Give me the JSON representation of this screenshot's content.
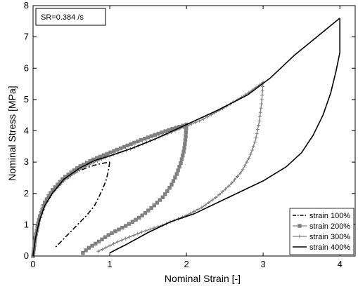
{
  "chart_data": {
    "type": "line",
    "xlabel": "Nominal Strain [-]",
    "ylabel": "Nominal Stress [MPa]",
    "xlim": [
      0,
      4.2
    ],
    "ylim": [
      0,
      8
    ],
    "xticks": [
      0,
      1,
      2,
      3,
      4
    ],
    "yticks": [
      0,
      1,
      2,
      3,
      4,
      5,
      6,
      7,
      8
    ],
    "grid": false,
    "legend_position": "bottom-right",
    "annotation": "SR=0.384 /s",
    "series": [
      {
        "name": "strain 100%",
        "color": "#000000",
        "line_style": "dashdot",
        "marker": "none",
        "loading": [
          [
            0,
            0
          ],
          [
            0.02,
            0.45
          ],
          [
            0.05,
            0.85
          ],
          [
            0.1,
            1.3
          ],
          [
            0.2,
            1.85
          ],
          [
            0.3,
            2.2
          ],
          [
            0.4,
            2.45
          ],
          [
            0.5,
            2.6
          ],
          [
            0.6,
            2.72
          ],
          [
            0.7,
            2.82
          ],
          [
            0.8,
            2.9
          ],
          [
            0.9,
            2.96
          ],
          [
            1.0,
            3.0
          ]
        ],
        "unloading": [
          [
            1.0,
            3.0
          ],
          [
            0.98,
            2.7
          ],
          [
            0.95,
            2.4
          ],
          [
            0.9,
            2.1
          ],
          [
            0.85,
            1.85
          ],
          [
            0.8,
            1.6
          ],
          [
            0.7,
            1.3
          ],
          [
            0.6,
            1.05
          ],
          [
            0.5,
            0.8
          ],
          [
            0.4,
            0.55
          ],
          [
            0.28,
            0.25
          ]
        ]
      },
      {
        "name": "strain 200%",
        "color": "#808080",
        "line_style": "solid",
        "marker": "square",
        "loading": [
          [
            0,
            0
          ],
          [
            0.03,
            0.6
          ],
          [
            0.08,
            1.2
          ],
          [
            0.15,
            1.7
          ],
          [
            0.25,
            2.1
          ],
          [
            0.4,
            2.5
          ],
          [
            0.6,
            2.85
          ],
          [
            0.8,
            3.1
          ],
          [
            1.0,
            3.3
          ],
          [
            1.2,
            3.5
          ],
          [
            1.4,
            3.7
          ],
          [
            1.6,
            3.88
          ],
          [
            1.8,
            4.05
          ],
          [
            2.0,
            4.2
          ]
        ],
        "unloading": [
          [
            2.0,
            4.2
          ],
          [
            1.99,
            3.8
          ],
          [
            1.97,
            3.4
          ],
          [
            1.93,
            3.0
          ],
          [
            1.87,
            2.6
          ],
          [
            1.8,
            2.25
          ],
          [
            1.7,
            1.9
          ],
          [
            1.55,
            1.55
          ],
          [
            1.4,
            1.25
          ],
          [
            1.2,
            0.95
          ],
          [
            1.0,
            0.7
          ],
          [
            0.85,
            0.45
          ],
          [
            0.72,
            0.25
          ],
          [
            0.65,
            0.1
          ]
        ]
      },
      {
        "name": "strain 300%",
        "color": "#808080",
        "line_style": "solid",
        "marker": "plus",
        "loading": [
          [
            0,
            0
          ],
          [
            0.03,
            0.55
          ],
          [
            0.08,
            1.1
          ],
          [
            0.15,
            1.6
          ],
          [
            0.25,
            2.0
          ],
          [
            0.4,
            2.4
          ],
          [
            0.6,
            2.75
          ],
          [
            0.8,
            3.0
          ],
          [
            1.0,
            3.2
          ],
          [
            1.3,
            3.45
          ],
          [
            1.6,
            3.75
          ],
          [
            1.9,
            4.05
          ],
          [
            2.2,
            4.35
          ],
          [
            2.5,
            4.75
          ],
          [
            2.8,
            5.2
          ],
          [
            3.0,
            5.55
          ]
        ],
        "unloading": [
          [
            3.0,
            5.55
          ],
          [
            2.98,
            4.9
          ],
          [
            2.95,
            4.3
          ],
          [
            2.9,
            3.7
          ],
          [
            2.83,
            3.2
          ],
          [
            2.72,
            2.7
          ],
          [
            2.58,
            2.3
          ],
          [
            2.4,
            1.9
          ],
          [
            2.2,
            1.55
          ],
          [
            2.0,
            1.3
          ],
          [
            1.7,
            1.0
          ],
          [
            1.4,
            0.75
          ],
          [
            1.1,
            0.45
          ],
          [
            0.85,
            0.15
          ]
        ]
      },
      {
        "name": "strain 400%",
        "color": "#000000",
        "line_style": "solid",
        "marker": "none",
        "loading": [
          [
            0,
            0
          ],
          [
            0.03,
            0.55
          ],
          [
            0.08,
            1.1
          ],
          [
            0.15,
            1.6
          ],
          [
            0.25,
            2.0
          ],
          [
            0.4,
            2.45
          ],
          [
            0.6,
            2.8
          ],
          [
            0.8,
            3.05
          ],
          [
            1.0,
            3.2
          ],
          [
            1.3,
            3.45
          ],
          [
            1.6,
            3.75
          ],
          [
            2.0,
            4.2
          ],
          [
            2.4,
            4.65
          ],
          [
            2.8,
            5.15
          ],
          [
            3.1,
            5.7
          ],
          [
            3.4,
            6.4
          ],
          [
            3.7,
            7.0
          ],
          [
            3.9,
            7.4
          ],
          [
            4.0,
            7.6
          ]
        ],
        "unloading": [
          [
            4.0,
            7.6
          ],
          [
            4.0,
            6.5
          ],
          [
            3.95,
            5.9
          ],
          [
            3.88,
            5.2
          ],
          [
            3.78,
            4.5
          ],
          [
            3.65,
            3.85
          ],
          [
            3.5,
            3.3
          ],
          [
            3.3,
            2.85
          ],
          [
            3.0,
            2.4
          ],
          [
            2.7,
            2.05
          ],
          [
            2.4,
            1.7
          ],
          [
            2.1,
            1.35
          ],
          [
            1.8,
            1.1
          ],
          [
            1.5,
            0.75
          ],
          [
            1.2,
            0.35
          ],
          [
            1.0,
            0.1
          ]
        ]
      }
    ]
  }
}
